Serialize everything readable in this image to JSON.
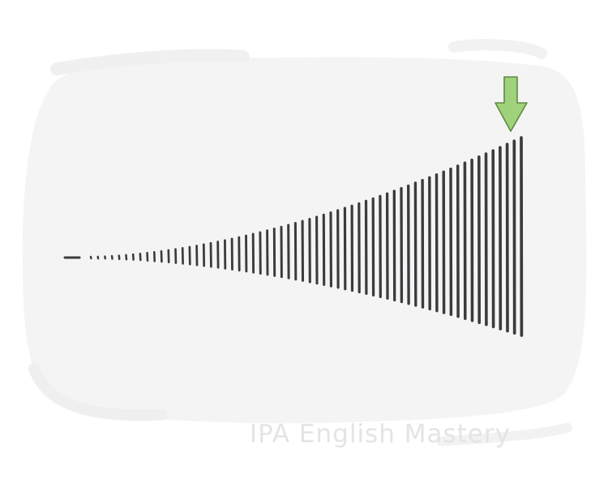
{
  "illustration": {
    "bar_count": 62,
    "bar_color": "#3a3b3d",
    "background_color": "#f4f4f4",
    "arrow_icon": "arrow-down-icon",
    "arrow_fill": "#9fd27a",
    "arrow_stroke": "#5f8a43"
  },
  "watermark": {
    "text": "IPA English Mastery",
    "color": "#e4e4e4"
  }
}
